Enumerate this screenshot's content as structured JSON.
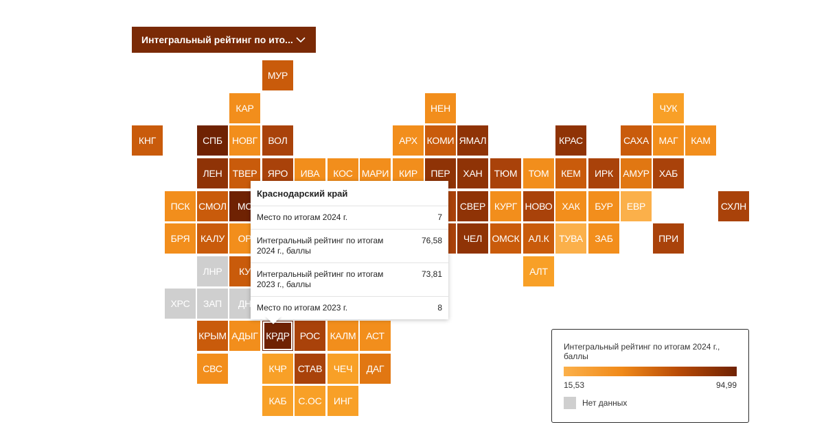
{
  "dropdown": {
    "label": "Интегральный рейтинг по ито...",
    "icon": "chevron-down-icon"
  },
  "colors": {
    "c1": "#fbb04a",
    "c2": "#f8a027",
    "c3": "#f28e1c",
    "c4": "#e17712",
    "c5": "#c95b0b",
    "c6": "#a9420a",
    "c7": "#8f3306",
    "c8": "#6f2203",
    "na": "#cfcfcf",
    "accent": "#7a2a06"
  },
  "regions": [
    {
      "label": "МУР",
      "c": "c5"
    },
    {
      "label": "КАР",
      "c": "c3"
    },
    {
      "label": "НЕН",
      "c": "c3"
    },
    {
      "label": "ЧУК",
      "c": "c2"
    },
    {
      "label": "КНГ",
      "c": "c5"
    },
    {
      "label": "СПБ",
      "c": "c8"
    },
    {
      "label": "НОВГ",
      "c": "c3"
    },
    {
      "label": "ВОЛ",
      "c": "c6"
    },
    {
      "label": "АРХ",
      "c": "c3"
    },
    {
      "label": "КОМИ",
      "c": "c5"
    },
    {
      "label": "ЯМАЛ",
      "c": "c7"
    },
    {
      "label": "КРАС",
      "c": "c7"
    },
    {
      "label": "САХА",
      "c": "c5"
    },
    {
      "label": "МАГ",
      "c": "c3"
    },
    {
      "label": "КАМ",
      "c": "c3"
    },
    {
      "label": "ЛЕН",
      "c": "c7"
    },
    {
      "label": "ТВЕР",
      "c": "c5"
    },
    {
      "label": "ЯРО",
      "c": "c6"
    },
    {
      "label": "ИВА",
      "c": "c3"
    },
    {
      "label": "КОС",
      "c": "c3"
    },
    {
      "label": "МАРИ",
      "c": "c3"
    },
    {
      "label": "КИР",
      "c": "c3"
    },
    {
      "label": "ПЕР",
      "c": "c7"
    },
    {
      "label": "ХАН",
      "c": "c7"
    },
    {
      "label": "ТЮМ",
      "c": "c6"
    },
    {
      "label": "ТОМ",
      "c": "c3"
    },
    {
      "label": "КЕМ",
      "c": "c5"
    },
    {
      "label": "ИРК",
      "c": "c6"
    },
    {
      "label": "АМУР",
      "c": "c4"
    },
    {
      "label": "ХАБ",
      "c": "c6"
    },
    {
      "label": "ПСК",
      "c": "c3"
    },
    {
      "label": "СМОЛ",
      "c": "c5"
    },
    {
      "label": "МС",
      "c": "c8"
    },
    {
      "label": "М",
      "c": "c6"
    },
    {
      "label": "СВЕР",
      "c": "c7"
    },
    {
      "label": "КУРГ",
      "c": "c3"
    },
    {
      "label": "НОВО",
      "c": "c6"
    },
    {
      "label": "ХАК",
      "c": "c3"
    },
    {
      "label": "БУР",
      "c": "c3"
    },
    {
      "label": "ЕВР",
      "c": "c1"
    },
    {
      "label": "СХЛН",
      "c": "c6"
    },
    {
      "label": "БРЯ",
      "c": "c3"
    },
    {
      "label": "КАЛУ",
      "c": "c5"
    },
    {
      "label": "ОР",
      "c": "c3"
    },
    {
      "label": "К",
      "c": "c6"
    },
    {
      "label": "ЧЕЛ",
      "c": "c7"
    },
    {
      "label": "ОМСК",
      "c": "c5"
    },
    {
      "label": "АЛ.К",
      "c": "c5"
    },
    {
      "label": "ТУВА",
      "c": "c1"
    },
    {
      "label": "ЗАБ",
      "c": "c3"
    },
    {
      "label": "ПРИ",
      "c": "c6"
    },
    {
      "label": "АЛТ",
      "c": "c2"
    },
    {
      "label": "ЛНР",
      "c": "na"
    },
    {
      "label": "КУ",
      "c": "c5"
    },
    {
      "label": "ХРС",
      "c": "na"
    },
    {
      "label": "ЗАП",
      "c": "na"
    },
    {
      "label": "ДН",
      "c": "na"
    },
    {
      "label": "КРЫМ",
      "c": "c5"
    },
    {
      "label": "АДЫГ",
      "c": "c3"
    },
    {
      "label": "КРДР",
      "c": "c8"
    },
    {
      "label": "РОС",
      "c": "c6"
    },
    {
      "label": "КАЛМ",
      "c": "c3"
    },
    {
      "label": "АСТ",
      "c": "c3"
    },
    {
      "label": "СВС",
      "c": "c3"
    },
    {
      "label": "КЧР",
      "c": "c2"
    },
    {
      "label": "СТАВ",
      "c": "c6"
    },
    {
      "label": "ЧЕЧ",
      "c": "c2"
    },
    {
      "label": "ДАГ",
      "c": "c4"
    },
    {
      "label": "КАБ",
      "c": "c2"
    },
    {
      "label": "С.ОС",
      "c": "c2"
    },
    {
      "label": "ИНГ",
      "c": "c2"
    }
  ],
  "tooltip": {
    "title": "Краснодарский край",
    "rows": [
      {
        "label": "Место по итогам 2024 г.",
        "value": "7"
      },
      {
        "label": "Интегральный рейтинг по итогам 2024 г., баллы",
        "value": "76,58"
      },
      {
        "label": "Интегральный рейтинг по итогам 2023 г., баллы",
        "value": "73,81"
      },
      {
        "label": "Место по итогам 2023 г.",
        "value": "8"
      }
    ]
  },
  "legend": {
    "title": "Интегральный рейтинг по итогам 2024 г., баллы",
    "min": "15,53",
    "max": "94,99",
    "nodata": "Нет данных"
  }
}
